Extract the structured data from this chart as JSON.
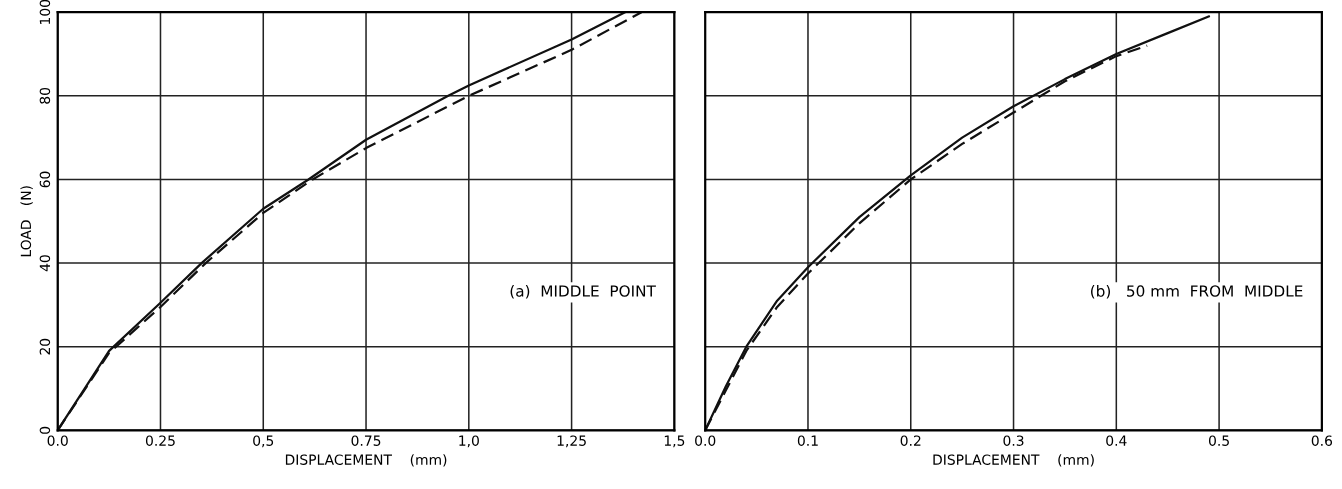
{
  "chart_data": [
    {
      "type": "line",
      "xlabel": "DISPLACEMENT    (mm)",
      "ylabel": "LOAD   (N)",
      "annotations": [
        "(a)  MIDDLE  POINT"
      ],
      "xlim": [
        0,
        1.5
      ],
      "ylim": [
        0,
        100
      ],
      "xticks": [
        {
          "value": 0,
          "label": "0.0"
        },
        {
          "value": 0.25,
          "label": "0.25"
        },
        {
          "value": 0.5,
          "label": "0,5"
        },
        {
          "value": 0.75,
          "label": "0.75"
        },
        {
          "value": 1.0,
          "label": "1,0"
        },
        {
          "value": 1.25,
          "label": "1,25"
        },
        {
          "value": 1.5,
          "label": "1,5"
        }
      ],
      "yticks": [
        0,
        20,
        40,
        60,
        80,
        100
      ],
      "grid": true,
      "series": [
        {
          "color": "#111111",
          "line_style": "solid",
          "x": [
            0,
            0.125,
            0.25,
            0.35,
            0.5,
            0.61,
            0.75,
            0.95,
            1.0,
            1.25,
            1.38
          ],
          "values": [
            0,
            19,
            30.5,
            40,
            53,
            60,
            69.5,
            80,
            82.5,
            93.5,
            100
          ]
        },
        {
          "color": "#111111",
          "line_style": "dashed",
          "x": [
            0,
            0.125,
            0.25,
            0.36,
            0.5,
            0.62,
            0.75,
            1.0,
            1.25,
            1.42
          ],
          "values": [
            0,
            18.5,
            29.5,
            40,
            52,
            60,
            67.5,
            80,
            91,
            100
          ]
        }
      ]
    },
    {
      "type": "line",
      "xlabel": "DISPLACEMENT    (mm)",
      "annotations": [
        "(b)   50 mm  FROM  MIDDLE"
      ],
      "xlim": [
        0,
        0.6
      ],
      "ylim": [
        0,
        100
      ],
      "tick_labels": "x",
      "xticks": [
        {
          "value": 0,
          "label": "0.0"
        },
        {
          "value": 0.1,
          "label": "0.1"
        },
        {
          "value": 0.2,
          "label": "0.2"
        },
        {
          "value": 0.3,
          "label": "0.3"
        },
        {
          "value": 0.4,
          "label": "0.4"
        },
        {
          "value": 0.5,
          "label": "0.5"
        },
        {
          "value": 0.6,
          "label": "0.6"
        }
      ],
      "yticks": [
        0,
        20,
        40,
        60,
        80,
        100
      ],
      "grid": true,
      "series": [
        {
          "color": "#111111",
          "line_style": "solid",
          "x": [
            0,
            0.02,
            0.04,
            0.07,
            0.1,
            0.15,
            0.2,
            0.25,
            0.3,
            0.35,
            0.4,
            0.45,
            0.49
          ],
          "values": [
            0,
            10.5,
            20,
            31,
            39,
            51,
            61,
            70,
            77.5,
            84,
            90,
            95,
            99
          ]
        },
        {
          "color": "#111111",
          "line_style": "dashed",
          "x": [
            0,
            0.02,
            0.04,
            0.07,
            0.1,
            0.15,
            0.2,
            0.25,
            0.3,
            0.35,
            0.4,
            0.43
          ],
          "values": [
            0,
            9.5,
            19,
            29.5,
            37.5,
            49.5,
            60,
            68.5,
            76,
            83.5,
            89.5,
            92
          ]
        }
      ]
    }
  ]
}
